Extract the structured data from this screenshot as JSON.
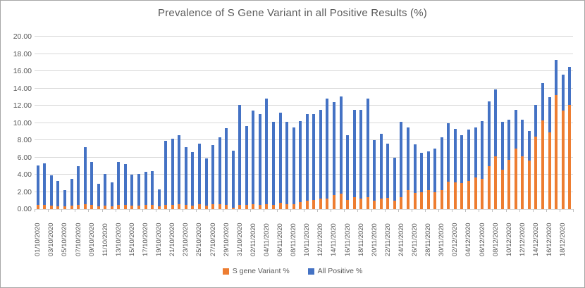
{
  "title": "Prevalence of S Gene Variant in all Positive Results (%)",
  "colors": {
    "s_gene": "#ED7D31",
    "all_positive": "#4472C4",
    "gridline": "#D9D9D9",
    "text": "#595959",
    "border": "#A6A6A6"
  },
  "legend": {
    "items": [
      {
        "label": "S gene Variant %",
        "color": "#ED7D31"
      },
      {
        "label": "All Positive %",
        "color": "#4472C4"
      }
    ]
  },
  "chart_data": {
    "type": "bar",
    "stacked": true,
    "title": "Prevalence of S Gene Variant in all Positive Results (%)",
    "xlabel": "",
    "ylabel": "",
    "ylim": [
      0,
      20
    ],
    "y_tick_step": 2,
    "y_tick_labels": [
      "0.00",
      "2.00",
      "4.00",
      "6.00",
      "8.00",
      "10.00",
      "12.00",
      "14.00",
      "16.00",
      "18.00",
      "20.00"
    ],
    "grid": "horizontal",
    "legend_position": "bottom",
    "x_label_interval": 2,
    "categories": [
      "01/10/2020",
      "02/10/2020",
      "03/10/2020",
      "04/10/2020",
      "05/10/2020",
      "06/10/2020",
      "07/10/2020",
      "08/10/2020",
      "09/10/2020",
      "10/10/2020",
      "11/10/2020",
      "12/10/2020",
      "13/10/2020",
      "14/10/2020",
      "15/10/2020",
      "16/10/2020",
      "17/10/2020",
      "18/10/2020",
      "19/10/2020",
      "20/10/2020",
      "21/10/2020",
      "22/10/2020",
      "23/10/2020",
      "24/10/2020",
      "25/10/2020",
      "26/10/2020",
      "27/10/2020",
      "28/10/2020",
      "29/10/2020",
      "30/10/2020",
      "31/10/2020",
      "01/11/2020",
      "02/11/2020",
      "03/11/2020",
      "04/11/2020",
      "05/11/2020",
      "06/11/2020",
      "07/11/2020",
      "08/11/2020",
      "09/11/2020",
      "10/11/2020",
      "11/11/2020",
      "12/11/2020",
      "13/11/2020",
      "14/11/2020",
      "15/11/2020",
      "16/11/2020",
      "17/11/2020",
      "18/11/2020",
      "19/11/2020",
      "20/11/2020",
      "21/11/2020",
      "22/11/2020",
      "23/11/2020",
      "24/11/2020",
      "25/11/2020",
      "26/11/2020",
      "27/11/2020",
      "28/11/2020",
      "29/11/2020",
      "30/11/2020",
      "01/12/2020",
      "02/12/2020",
      "03/12/2020",
      "04/12/2020",
      "05/12/2020",
      "06/12/2020",
      "07/12/2020",
      "08/12/2020",
      "09/12/2020",
      "10/12/2020",
      "11/12/2020",
      "12/12/2020",
      "13/12/2020",
      "14/12/2020",
      "15/12/2020",
      "16/12/2020",
      "17/12/2020",
      "18/12/2020",
      "19/12/2020"
    ],
    "x_tick_labels_shown": [
      "01/10/2020",
      "03/10/2020",
      "05/10/2020",
      "07/10/2020",
      "09/10/2020",
      "11/10/2020",
      "13/10/2020",
      "15/10/2020",
      "17/10/2020",
      "19/10/2020",
      "21/10/2020",
      "23/10/2020",
      "25/10/2020",
      "27/10/2020",
      "29/10/2020",
      "31/10/2020",
      "02/11/2020",
      "04/11/2020",
      "06/11/2020",
      "08/11/2020",
      "10/11/2020",
      "12/11/2020",
      "14/11/2020",
      "16/11/2020",
      "18/11/2020",
      "20/11/2020",
      "22/11/2020",
      "24/11/2020",
      "26/11/2020",
      "28/11/2020",
      "30/11/2020",
      "02/12/2020",
      "04/12/2020",
      "06/12/2020",
      "08/12/2020",
      "10/12/2020",
      "12/12/2020",
      "14/12/2020",
      "16/12/2020",
      "18/12/2020"
    ],
    "series": [
      {
        "name": "S gene Variant %",
        "color": "#ED7D31",
        "values": [
          0.5,
          0.5,
          0.4,
          0.3,
          0.3,
          0.4,
          0.5,
          0.6,
          0.5,
          0.3,
          0.4,
          0.3,
          0.5,
          0.5,
          0.4,
          0.4,
          0.5,
          0.5,
          0.3,
          0.5,
          0.5,
          0.6,
          0.5,
          0.4,
          0.6,
          0.4,
          0.6,
          0.6,
          0.5,
          0.2,
          0.5,
          0.5,
          0.6,
          0.5,
          0.6,
          0.5,
          0.7,
          0.6,
          0.6,
          0.8,
          1.0,
          1.1,
          1.2,
          1.2,
          1.6,
          1.8,
          1.1,
          1.4,
          1.2,
          1.4,
          1.0,
          1.2,
          1.3,
          1.0,
          1.4,
          2.2,
          1.9,
          2.0,
          2.2,
          2.0,
          2.2,
          3.2,
          3.1,
          3.0,
          3.3,
          3.7,
          3.5,
          5.0,
          6.1,
          4.6,
          5.7,
          7.0,
          6.1,
          5.6,
          8.4,
          10.3,
          8.9,
          13.2,
          11.4,
          12.1
        ]
      },
      {
        "name": "All Positive %",
        "color": "#4472C4",
        "values": [
          4.6,
          4.8,
          3.5,
          3.0,
          1.9,
          3.1,
          4.5,
          6.6,
          5.0,
          2.6,
          3.7,
          2.8,
          5.0,
          4.7,
          3.6,
          3.7,
          3.8,
          3.9,
          2.0,
          7.4,
          7.7,
          8.0,
          6.7,
          6.2,
          7.0,
          5.5,
          6.8,
          7.7,
          8.9,
          6.6,
          11.6,
          9.1,
          10.8,
          10.5,
          12.2,
          9.6,
          10.5,
          9.5,
          8.9,
          9.4,
          10.0,
          9.9,
          10.3,
          11.6,
          10.8,
          11.3,
          7.5,
          10.1,
          10.3,
          11.4,
          7.0,
          7.5,
          6.3,
          5.0,
          8.7,
          7.3,
          5.6,
          4.5,
          4.5,
          5.0,
          6.1,
          6.8,
          6.2,
          5.6,
          5.9,
          5.8,
          6.7,
          7.5,
          7.8,
          5.5,
          4.7,
          4.5,
          4.3,
          3.5,
          3.7,
          4.3,
          4.1,
          4.1,
          4.2,
          4.4
        ]
      }
    ],
    "stack_totals": [
      5.1,
      5.3,
      3.9,
      3.3,
      2.2,
      3.5,
      5.0,
      7.2,
      5.5,
      2.9,
      4.1,
      3.1,
      5.5,
      5.2,
      4.0,
      4.1,
      4.3,
      4.4,
      2.3,
      7.9,
      8.2,
      8.6,
      7.2,
      6.6,
      7.6,
      5.9,
      7.4,
      8.3,
      9.4,
      6.8,
      12.1,
      9.6,
      11.4,
      11.0,
      12.8,
      10.1,
      11.2,
      10.1,
      9.5,
      10.2,
      11.0,
      11.0,
      11.5,
      12.8,
      12.4,
      13.1,
      8.6,
      11.5,
      11.5,
      12.8,
      8.0,
      8.7,
      7.6,
      6.0,
      10.1,
      9.5,
      7.5,
      6.5,
      6.7,
      7.0,
      8.3,
      10.0,
      9.3,
      8.6,
      9.2,
      9.5,
      10.2,
      12.5,
      13.9,
      10.1,
      10.4,
      11.5,
      10.4,
      9.1,
      12.1,
      14.6,
      13.0,
      17.3,
      15.6,
      16.5
    ]
  }
}
